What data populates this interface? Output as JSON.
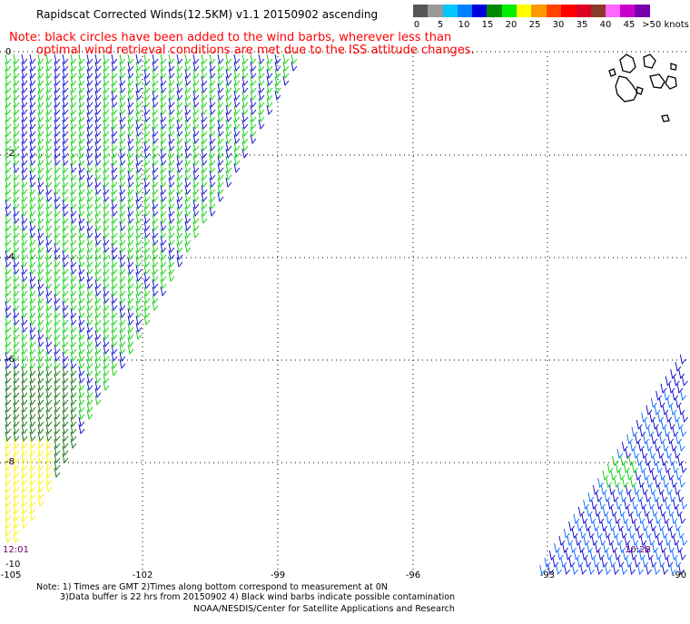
{
  "header": {
    "title": "Rapidscat Corrected Winds(12.5KM) v1.1 20150902 ascending"
  },
  "legend": {
    "labels": [
      "0",
      "5",
      "10",
      "15",
      "20",
      "25",
      "30",
      "35",
      "40",
      "45",
      ">50 knots"
    ],
    "colors": [
      "#555555",
      "#999999",
      "#00c8ff",
      "#0080ff",
      "#0000dd",
      "#008800",
      "#00ee00",
      "#ffff00",
      "#ff9900",
      "#ff4400",
      "#ff0000",
      "#dd0022",
      "#8b3a2a",
      "#ff66ff",
      "#cc00cc",
      "#7700aa"
    ]
  },
  "note": {
    "line1": "Note: black circles have been added to the wind barbs, wherever less than",
    "line2": "optimal wind retrieval conditions are met due to the ISS attitude changes."
  },
  "axes": {
    "x_ticks": [
      "-105",
      "-102",
      "-99",
      "-96",
      "-93",
      "-90"
    ],
    "y_ticks": [
      "0",
      "-2",
      "-4",
      "-6",
      "-8",
      "-10"
    ]
  },
  "times": {
    "left": "12:01",
    "right": "10:28"
  },
  "footer": {
    "line1": "Note: 1) Times are GMT 2)Times along bottom correspond to measurement at 0N",
    "line2": "3)Data buffer is 22 hrs from 20150902 4) Black wind barbs indicate possible contamination",
    "line3": "NOAA/NESDIS/Center for Satellite Applications and Research"
  },
  "colors": {
    "blue_barb": "#0000cc",
    "light_blue_barb": "#0066ff",
    "green_barb": "#00cc00",
    "dark_green_barb": "#006600",
    "yellow_barb": "#ffee00",
    "note_text": "#ff0000",
    "time_text": "#6a006a"
  }
}
